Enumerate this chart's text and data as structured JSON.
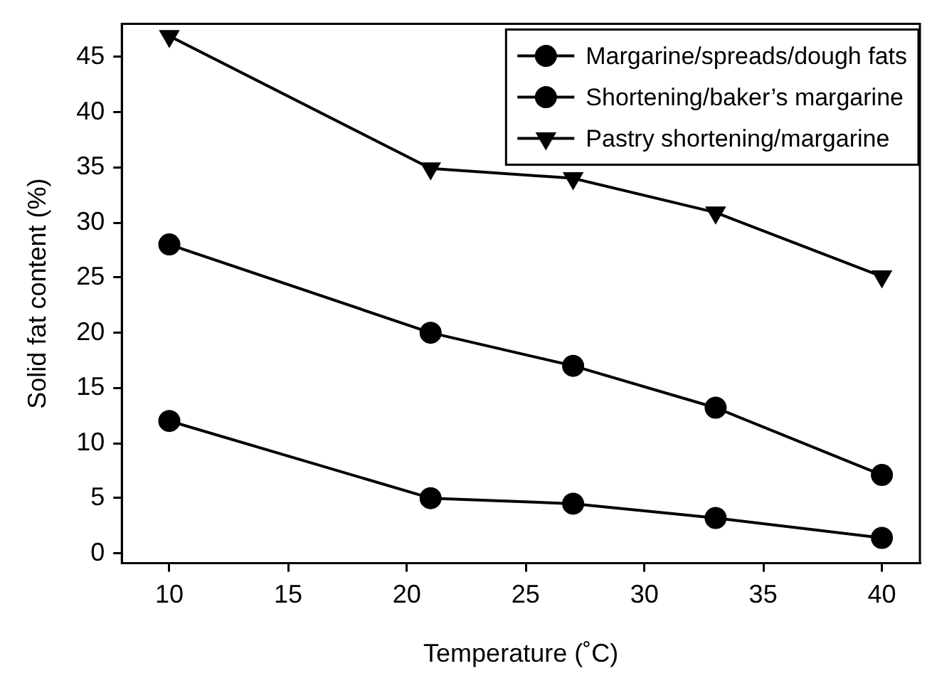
{
  "chart_data": {
    "type": "line",
    "xlabel": "Temperature (˚C)",
    "ylabel": "Solid fat content (%)",
    "x": [
      10,
      21,
      27,
      33,
      40
    ],
    "series": [
      {
        "name": "Margarine/spreads/dough fats",
        "color": "#000000",
        "marker": "circle",
        "values": [
          12,
          5,
          4.5,
          3.2,
          1.4
        ]
      },
      {
        "name": "Shortening/baker’s margarine",
        "color": "#000000",
        "marker": "circle",
        "values": [
          28,
          20,
          17,
          13.2,
          7.1
        ]
      },
      {
        "name": "Pastry shortening/margarine",
        "color": "#000000",
        "marker": "triangle",
        "values": [
          46.9,
          34.9,
          34,
          30.9,
          25.1
        ]
      }
    ],
    "xlim": [
      8,
      41.6
    ],
    "xticks": [
      10,
      15,
      20,
      25,
      30,
      35,
      40
    ],
    "ylim": [
      -0.9,
      48
    ],
    "yticks": [
      0,
      5,
      10,
      15,
      20,
      25,
      30,
      35,
      40,
      45
    ],
    "grid": false,
    "legend": "top right",
    "line_style": "solid"
  }
}
